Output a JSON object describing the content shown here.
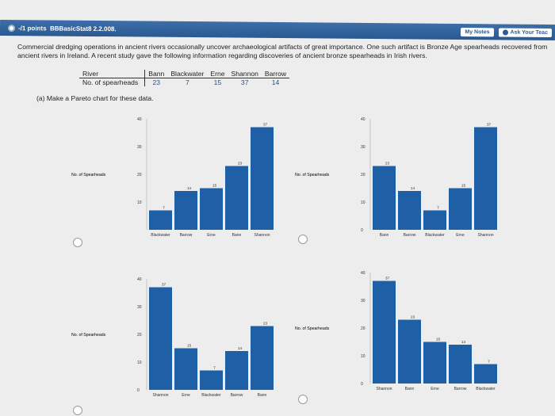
{
  "header": {
    "points_label": "-/1 points",
    "assignment": "BBBasicStat8 2.2.008.",
    "my_notes": "My Notes",
    "ask_teacher": "Ask Your Teac"
  },
  "question": {
    "text": "Commercial dredging operations in ancient rivers occasionally uncover archaeological artifacts of great importance. One such artifact is Bronze Age spearheads recovered from ancient rivers in Ireland. A recent study gave the following information regarding discoveries of ancient bronze spearheads in Irish rivers.",
    "table": {
      "row1_label": "River",
      "row2_label": "No. of spearheads",
      "rivers": [
        "Bann",
        "Blackwater",
        "Erne",
        "Shannon",
        "Barrow"
      ],
      "counts": [
        "23",
        "7",
        "15",
        "37",
        "14"
      ]
    },
    "part_a": "(a) Make a Pareto chart for these data."
  },
  "chart_data": [
    {
      "type": "bar",
      "categories": [
        "Blackwater",
        "Barrow",
        "Erne",
        "Bann",
        "Shannon"
      ],
      "values": [
        7,
        14,
        15,
        23,
        37
      ],
      "ylabel": "No. of Spearheads",
      "ylim": [
        0,
        40
      ],
      "yticks": [
        "40",
        "30",
        "20",
        "10"
      ]
    },
    {
      "type": "bar",
      "categories": [
        "Bann",
        "Barrow",
        "Blackwater",
        "Erne",
        "Shannon"
      ],
      "values": [
        23,
        14,
        7,
        15,
        37
      ],
      "ylabel": "No. of Spearheads",
      "ylim": [
        0,
        40
      ],
      "yticks": [
        "40",
        "30",
        "20",
        "10",
        "0"
      ]
    },
    {
      "type": "bar",
      "categories": [
        "Shannon",
        "Erne",
        "Blackwater",
        "Barrow",
        "Bann"
      ],
      "values": [
        37,
        15,
        7,
        14,
        23
      ],
      "ylabel": "No. of Spearheads",
      "ylim": [
        0,
        40
      ],
      "yticks": [
        "40",
        "30",
        "20",
        "10",
        "0"
      ]
    },
    {
      "type": "bar",
      "categories": [
        "Shannon",
        "Bann",
        "Erne",
        "Barrow",
        "Blackwater"
      ],
      "values": [
        37,
        23,
        15,
        14,
        7
      ],
      "ylabel": "No. of Spearheads",
      "ylim": [
        0,
        40
      ],
      "yticks": [
        "40",
        "30",
        "20",
        "10",
        "0"
      ]
    }
  ]
}
